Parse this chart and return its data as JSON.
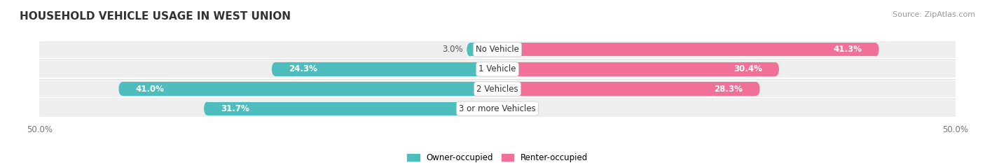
{
  "title": "HOUSEHOLD VEHICLE USAGE IN WEST UNION",
  "source": "Source: ZipAtlas.com",
  "categories": [
    "No Vehicle",
    "1 Vehicle",
    "2 Vehicles",
    "3 or more Vehicles"
  ],
  "owner_values": [
    3.0,
    24.3,
    41.0,
    31.7
  ],
  "renter_values": [
    41.3,
    30.4,
    28.3,
    0.0
  ],
  "owner_color": "#4dbdbd",
  "renter_color": "#f07098",
  "renter_color_light": "#f8b8cc",
  "bar_bg_color": "#eeeeee",
  "xlim_left": -50,
  "xlim_right": 50,
  "bar_height": 0.68,
  "title_fontsize": 11,
  "source_fontsize": 8,
  "label_fontsize": 8.5,
  "category_fontsize": 8.5,
  "legend_fontsize": 8.5,
  "background_color": "#ffffff",
  "text_dark": "#555555",
  "text_white": "#ffffff",
  "text_gray": "#777777"
}
